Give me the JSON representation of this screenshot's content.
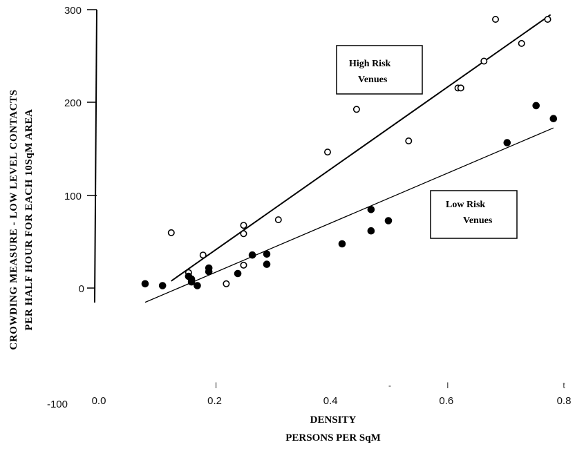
{
  "chart_data": {
    "type": "scatter",
    "ylabel_lines": [
      "CROWDING MEASURE - LOW LEVEL CONTACTS",
      "PER HALF HOUR FOR EACH 10SqM AREA"
    ],
    "xlabel_lines": [
      "DENSITY",
      "PERSONS PER SqM"
    ],
    "x_ticks": [
      {
        "value": 0.0,
        "label": "0.0"
      },
      {
        "value": 0.2,
        "label": "0.2"
      },
      {
        "value": 0.4,
        "label": "0.4"
      },
      {
        "value": 0.6,
        "label": "0.6"
      },
      {
        "value": 0.8,
        "label": "0.8"
      }
    ],
    "y_ticks": [
      {
        "value": 300,
        "label": "300"
      },
      {
        "value": 200,
        "label": "200"
      },
      {
        "value": 100,
        "label": "100"
      },
      {
        "value": 0,
        "label": "0"
      },
      {
        "value": -100,
        "label": "-100"
      }
    ],
    "stray_marks": [
      {
        "value": 0.2,
        "label": "I"
      },
      {
        "value": 0.5,
        "label": "-"
      },
      {
        "value": 0.6,
        "label": "I"
      },
      {
        "value": 0.8,
        "label": "t"
      }
    ],
    "xlim": [
      0.0,
      0.8
    ],
    "ylim": [
      -100,
      300
    ],
    "grid": false,
    "annotations": [
      {
        "lines": [
          "High Risk",
          "Venues"
        ],
        "series": "high"
      },
      {
        "lines": [
          "Low Risk",
          "Venues"
        ],
        "series": "low"
      }
    ],
    "series": [
      {
        "id": "high",
        "marker": "open-circle",
        "points": [
          [
            0.125,
            60
          ],
          [
            0.155,
            17
          ],
          [
            0.18,
            36
          ],
          [
            0.22,
            5
          ],
          [
            0.25,
            68
          ],
          [
            0.25,
            59
          ],
          [
            0.25,
            25
          ],
          [
            0.31,
            74
          ],
          [
            0.395,
            147
          ],
          [
            0.445,
            193
          ],
          [
            0.535,
            159
          ],
          [
            0.62,
            216
          ],
          [
            0.625,
            216
          ],
          [
            0.665,
            245
          ],
          [
            0.685,
            290
          ],
          [
            0.73,
            264
          ],
          [
            0.775,
            290
          ]
        ],
        "trendline": {
          "x": [
            0.125,
            0.78
          ],
          "y": [
            8,
            295
          ]
        }
      },
      {
        "id": "low",
        "marker": "filled-circle",
        "points": [
          [
            0.08,
            5
          ],
          [
            0.11,
            3
          ],
          [
            0.155,
            13
          ],
          [
            0.16,
            10
          ],
          [
            0.16,
            7
          ],
          [
            0.17,
            3
          ],
          [
            0.19,
            22
          ],
          [
            0.19,
            18
          ],
          [
            0.24,
            16
          ],
          [
            0.265,
            36
          ],
          [
            0.29,
            37
          ],
          [
            0.29,
            26
          ],
          [
            0.42,
            48
          ],
          [
            0.47,
            85
          ],
          [
            0.47,
            62
          ],
          [
            0.5,
            73
          ],
          [
            0.705,
            157
          ],
          [
            0.755,
            197
          ],
          [
            0.785,
            183
          ]
        ],
        "trendline": {
          "x": [
            0.08,
            0.785
          ],
          "y": [
            -15,
            173
          ]
        }
      }
    ]
  }
}
